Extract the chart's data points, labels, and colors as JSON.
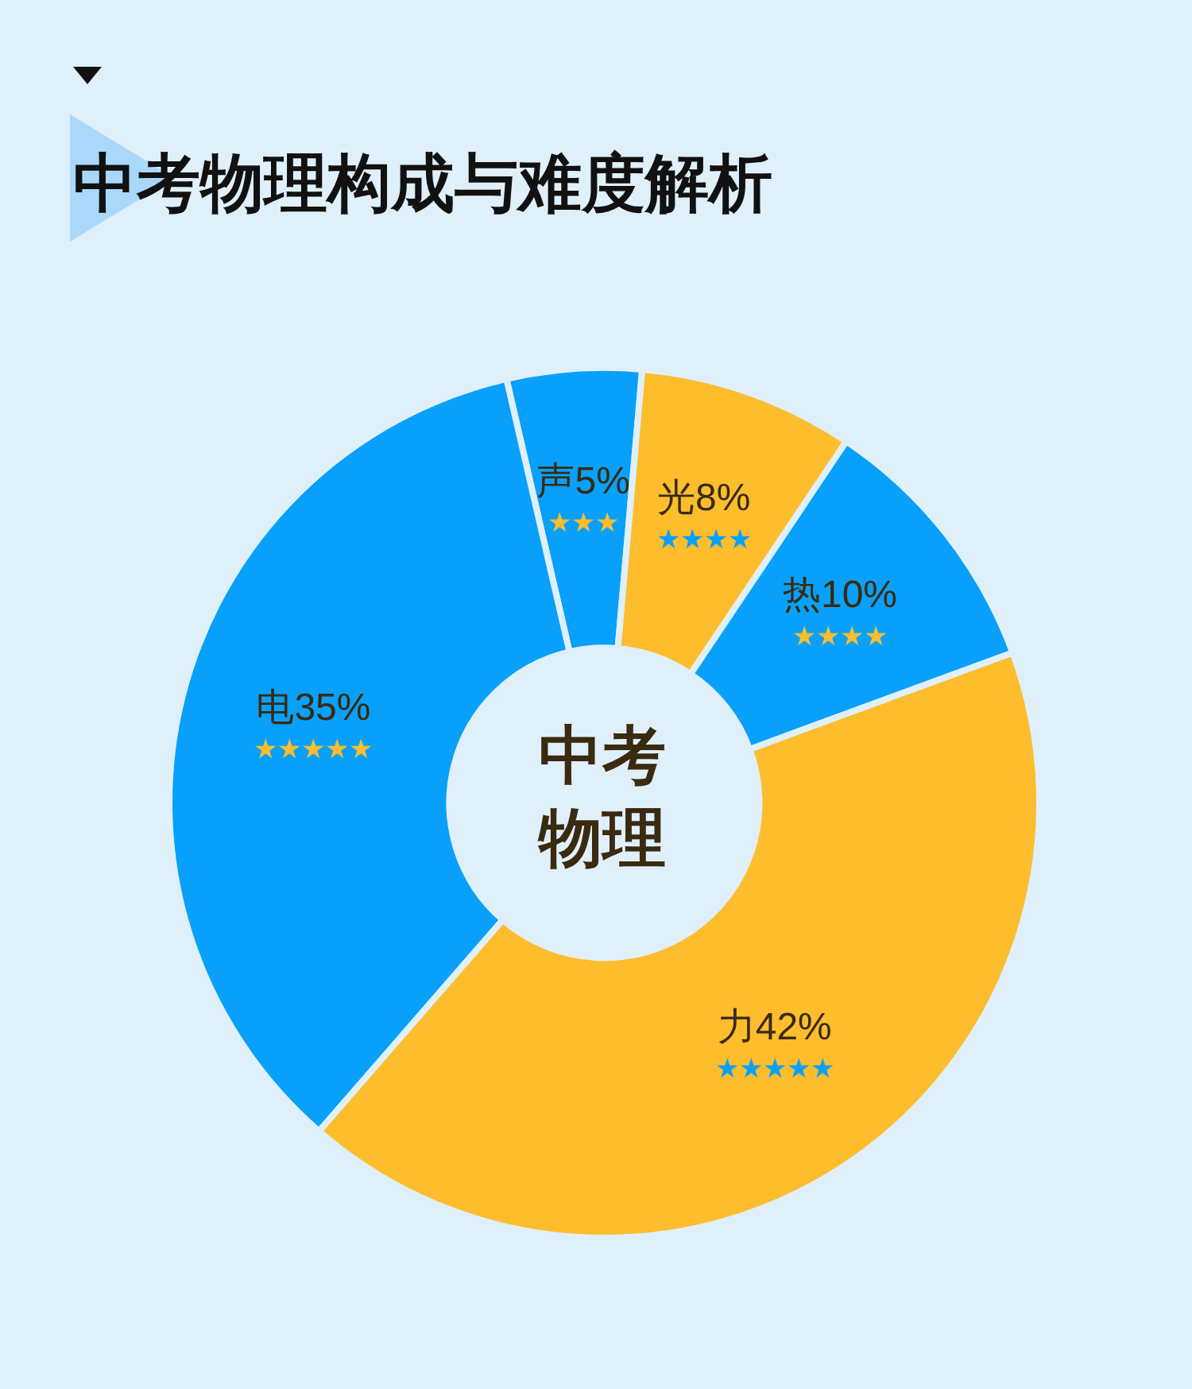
{
  "chart_data": {
    "type": "donut",
    "title": "中考物理构成与难度解析",
    "categories": [
      "声",
      "光",
      "热",
      "力",
      "电"
    ],
    "values": [
      5,
      8,
      10,
      42,
      35
    ],
    "value_labels": [
      "5%",
      "8%",
      "10%",
      "42%",
      "35%"
    ],
    "colors": [
      "#08a0fb",
      "#fdbd2d",
      "#08a0fb",
      "#fdbd2d",
      "#08a0fb"
    ],
    "annotations": [
      "中考",
      "物理",
      "★★★",
      "★★★★",
      "★★★★",
      "★★★★★",
      "★★★★★"
    ],
    "legend": false
  }
}
